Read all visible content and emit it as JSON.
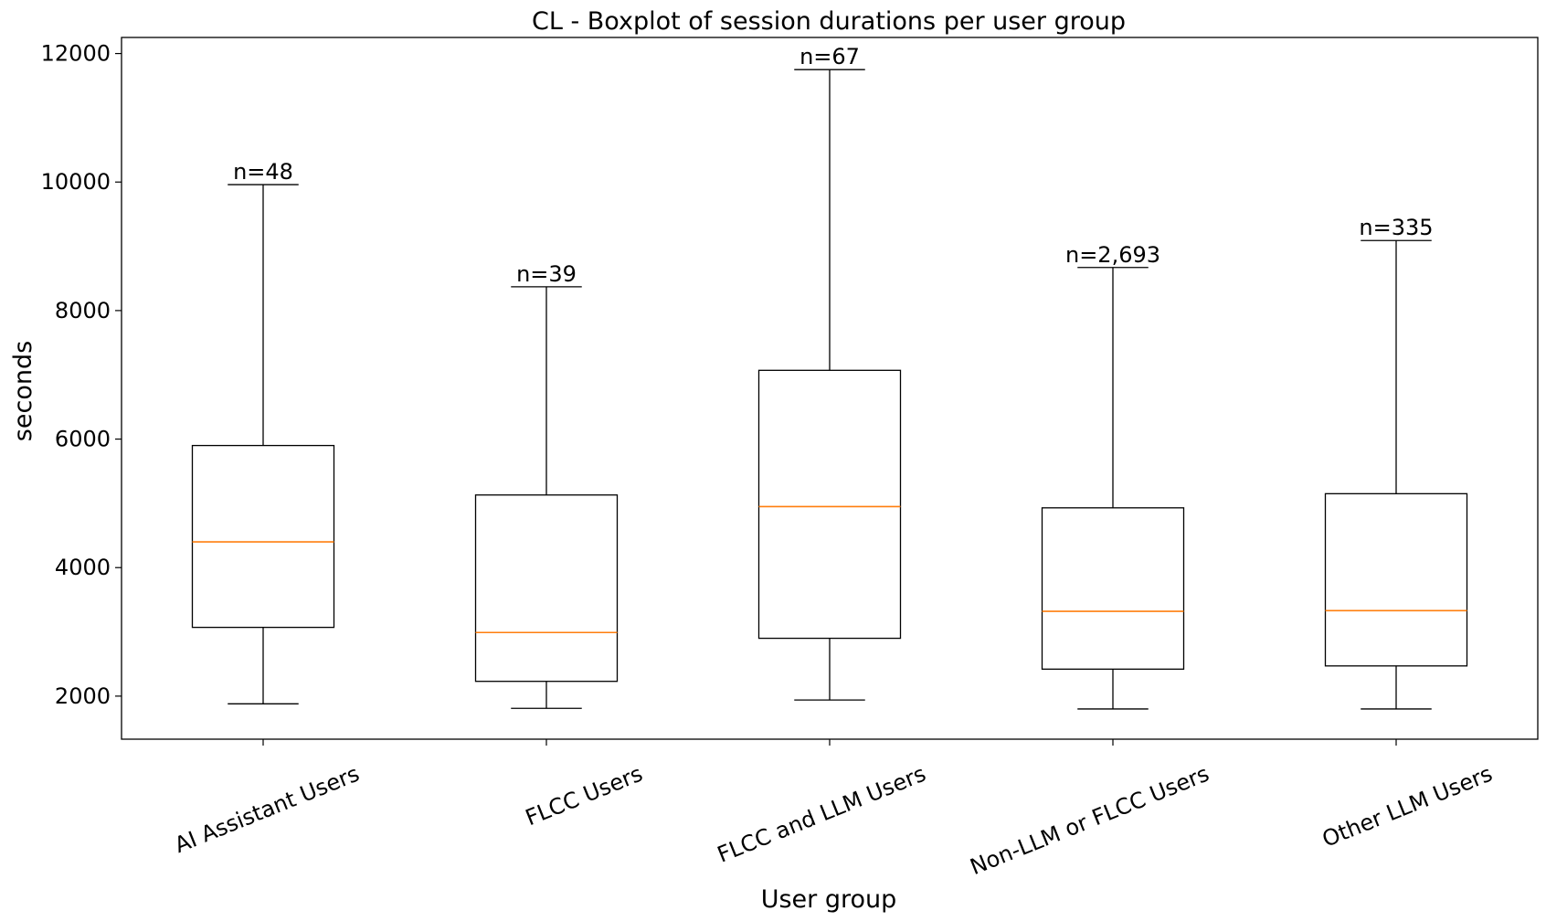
{
  "chart_data": {
    "type": "boxplot",
    "title": "CL - Boxplot of session durations per user group",
    "xlabel": "User group",
    "ylabel": "seconds",
    "ylim": [
      1330,
      12250
    ],
    "yticks": [
      2000,
      4000,
      6000,
      8000,
      10000,
      12000
    ],
    "grid": false,
    "box_color": "#000000",
    "median_color": "#ff7f0e",
    "groups": [
      {
        "label": "AI Assistant Users",
        "whisker_low": 1880,
        "q1": 3070,
        "median": 4400,
        "q3": 5900,
        "whisker_high": 9960,
        "n_label": "n=48"
      },
      {
        "label": "FLCC Users",
        "whisker_low": 1810,
        "q1": 2230,
        "median": 2990,
        "q3": 5130,
        "whisker_high": 8370,
        "n_label": "n=39"
      },
      {
        "label": "FLCC and LLM Users",
        "whisker_low": 1940,
        "q1": 2900,
        "median": 4950,
        "q3": 7070,
        "whisker_high": 11750,
        "n_label": "n=67"
      },
      {
        "label": "Non-LLM or FLCC Users",
        "whisker_low": 1800,
        "q1": 2420,
        "median": 3320,
        "q3": 4930,
        "whisker_high": 8670,
        "n_label": "n=2,693"
      },
      {
        "label": "Other LLM Users",
        "whisker_low": 1800,
        "q1": 2470,
        "median": 3330,
        "q3": 5150,
        "whisker_high": 9090,
        "n_label": "n=335"
      }
    ]
  }
}
